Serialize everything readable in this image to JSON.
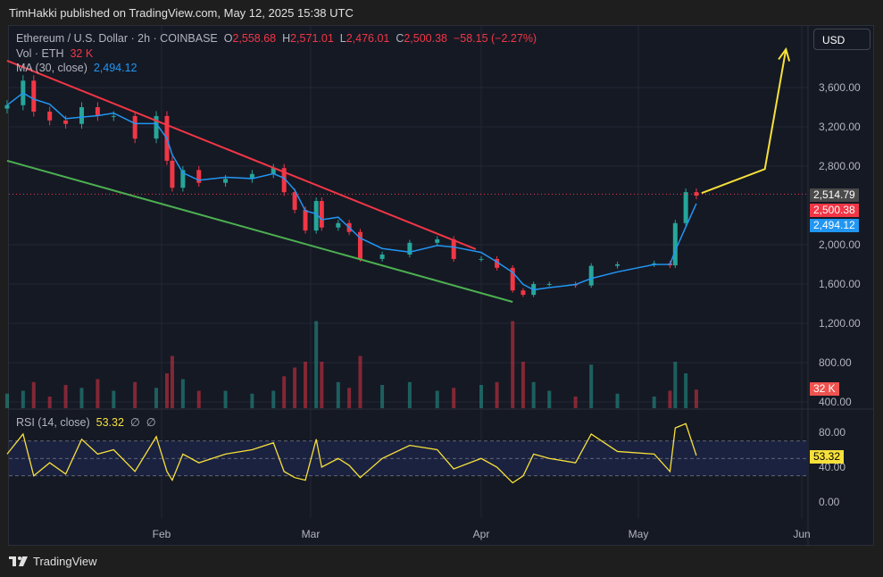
{
  "publish_line": "TimHakki published on TradingView.com, May 12, 2025 15:38 UTC",
  "header": {
    "symbol": "Ethereum / U.S. Dollar · 2h · COINBASE",
    "o_label": "O",
    "o": "2,558.68",
    "h_label": "H",
    "h": "2,571.01",
    "l_label": "L",
    "l": "2,476.01",
    "c_label": "C",
    "c": "2,500.38",
    "change": "−58.15 (−2.27%)",
    "vol_label": "Vol · ETH",
    "vol": "32 K",
    "ma_label": "MA (30, close)",
    "ma": "2,494.12"
  },
  "currency_button": "USD",
  "rsi_legend": {
    "label": "RSI (14, close)",
    "value": "53.32",
    "extra1": "∅",
    "extra2": "∅"
  },
  "price_axis": [
    "3,600.00",
    "3,200.00",
    "2,800.00",
    "2,000.00",
    "1,600.00",
    "1,200.00",
    "800.00",
    "400.00"
  ],
  "price_axis_values": [
    3600,
    3200,
    2800,
    2000,
    1600,
    1200,
    800,
    400
  ],
  "rsi_axis": [
    "80.00",
    "40.00",
    "0.00"
  ],
  "rsi_axis_values": [
    80,
    40,
    0
  ],
  "time_axis": [
    {
      "label": "Feb",
      "date": "2025-02-01"
    },
    {
      "label": "Mar",
      "date": "2025-03-01"
    },
    {
      "label": "Apr",
      "date": "2025-04-01"
    },
    {
      "label": "May",
      "date": "2025-05-01"
    },
    {
      "label": "Jun",
      "date": "2025-06-01"
    }
  ],
  "tags": {
    "last_price": "2,514.79",
    "close": "2,500.38",
    "ma": "2,494.12",
    "volume": "32 K",
    "rsi": "53.32"
  },
  "colors": {
    "up": "#26a69a",
    "down": "#f23645",
    "ma": "#2196f3",
    "rsi": "#f7e03a",
    "resistance": "#f23645",
    "support": "#4caf50",
    "projection": "#f7e03a",
    "background": "#151924"
  },
  "brand": "TradingView",
  "chart_data": {
    "type": "candlestick",
    "symbol": "ETHUSD",
    "interval": "2h",
    "price_range": [
      350,
      4050
    ],
    "rsi_range": [
      -10,
      100
    ],
    "rsi_bands": [
      70,
      30
    ],
    "series": [
      {
        "date": "2025-01-03",
        "close": 3420,
        "volume": 25,
        "rsi": 55
      },
      {
        "date": "2025-01-06",
        "close": 3670,
        "volume": 30,
        "rsi": 78
      },
      {
        "date": "2025-01-08",
        "close": 3355,
        "volume": 45,
        "rsi": 30
      },
      {
        "date": "2025-01-11",
        "close": 3265,
        "volume": 20,
        "rsi": 45
      },
      {
        "date": "2025-01-14",
        "close": 3230,
        "volume": 40,
        "rsi": 32
      },
      {
        "date": "2025-01-17",
        "close": 3400,
        "volume": 35,
        "rsi": 72
      },
      {
        "date": "2025-01-20",
        "close": 3310,
        "volume": 50,
        "rsi": 55
      },
      {
        "date": "2025-01-23",
        "close": 3310,
        "volume": 30,
        "rsi": 60
      },
      {
        "date": "2025-01-27",
        "close": 3080,
        "volume": 45,
        "rsi": 35
      },
      {
        "date": "2025-01-31",
        "close": 3310,
        "volume": 35,
        "rsi": 75
      },
      {
        "date": "2025-02-02",
        "close": 2855,
        "volume": 60,
        "rsi": 35
      },
      {
        "date": "2025-02-03",
        "close": 2580,
        "volume": 90,
        "rsi": 25
      },
      {
        "date": "2025-02-05",
        "close": 2760,
        "volume": 50,
        "rsi": 55
      },
      {
        "date": "2025-02-08",
        "close": 2630,
        "volume": 30,
        "rsi": 45
      },
      {
        "date": "2025-02-13",
        "close": 2670,
        "volume": 30,
        "rsi": 55
      },
      {
        "date": "2025-02-18",
        "close": 2720,
        "volume": 25,
        "rsi": 60
      },
      {
        "date": "2025-02-22",
        "close": 2780,
        "volume": 30,
        "rsi": 68
      },
      {
        "date": "2025-02-24",
        "close": 2535,
        "volume": 55,
        "rsi": 35
      },
      {
        "date": "2025-02-26",
        "close": 2355,
        "volume": 70,
        "rsi": 28
      },
      {
        "date": "2025-02-28",
        "close": 2145,
        "volume": 80,
        "rsi": 25
      },
      {
        "date": "2025-03-02",
        "close": 2445,
        "volume": 150,
        "rsi": 72
      },
      {
        "date": "2025-03-03",
        "close": 2175,
        "volume": 80,
        "rsi": 40
      },
      {
        "date": "2025-03-06",
        "close": 2220,
        "volume": 45,
        "rsi": 50
      },
      {
        "date": "2025-03-08",
        "close": 2130,
        "volume": 35,
        "rsi": 42
      },
      {
        "date": "2025-03-10",
        "close": 1855,
        "volume": 90,
        "rsi": 28
      },
      {
        "date": "2025-03-14",
        "close": 1900,
        "volume": 40,
        "rsi": 50
      },
      {
        "date": "2025-03-19",
        "close": 2020,
        "volume": 45,
        "rsi": 65
      },
      {
        "date": "2025-03-24",
        "close": 2055,
        "volume": 30,
        "rsi": 60
      },
      {
        "date": "2025-03-27",
        "close": 1855,
        "volume": 35,
        "rsi": 38
      },
      {
        "date": "2025-04-01",
        "close": 1855,
        "volume": 40,
        "rsi": 50
      },
      {
        "date": "2025-04-04",
        "close": 1765,
        "volume": 45,
        "rsi": 40
      },
      {
        "date": "2025-04-07",
        "close": 1535,
        "volume": 150,
        "rsi": 22
      },
      {
        "date": "2025-04-09",
        "close": 1490,
        "volume": 80,
        "rsi": 30
      },
      {
        "date": "2025-04-11",
        "close": 1600,
        "volume": 45,
        "rsi": 55
      },
      {
        "date": "2025-04-14",
        "close": 1600,
        "volume": 30,
        "rsi": 50
      },
      {
        "date": "2025-04-19",
        "close": 1585,
        "volume": 20,
        "rsi": 45
      },
      {
        "date": "2025-04-22",
        "close": 1785,
        "volume": 75,
        "rsi": 78
      },
      {
        "date": "2025-04-27",
        "close": 1800,
        "volume": 25,
        "rsi": 58
      },
      {
        "date": "2025-05-04",
        "close": 1810,
        "volume": 20,
        "rsi": 55
      },
      {
        "date": "2025-05-07",
        "close": 1790,
        "volume": 30,
        "rsi": 35
      },
      {
        "date": "2025-05-08",
        "close": 2220,
        "volume": 80,
        "rsi": 85
      },
      {
        "date": "2025-05-10",
        "close": 2535,
        "volume": 60,
        "rsi": 90
      },
      {
        "date": "2025-05-12",
        "close": 2500,
        "volume": 32,
        "rsi": 53.32
      }
    ],
    "drawings": [
      {
        "name": "resistance-trendline",
        "color": "#f23645",
        "points": [
          [
            "2025-01-03",
            3873
          ],
          [
            "2025-03-31",
            1955
          ]
        ]
      },
      {
        "name": "support-trendline",
        "color": "#4caf50",
        "points": [
          [
            "2025-01-03",
            2855
          ],
          [
            "2025-04-07",
            1418
          ]
        ]
      },
      {
        "name": "projection-arrow",
        "color": "#f7e03a",
        "points": [
          [
            "2025-05-13",
            2526
          ],
          [
            "2025-05-25",
            2770
          ],
          [
            "2025-05-29",
            3990
          ]
        ]
      }
    ]
  }
}
